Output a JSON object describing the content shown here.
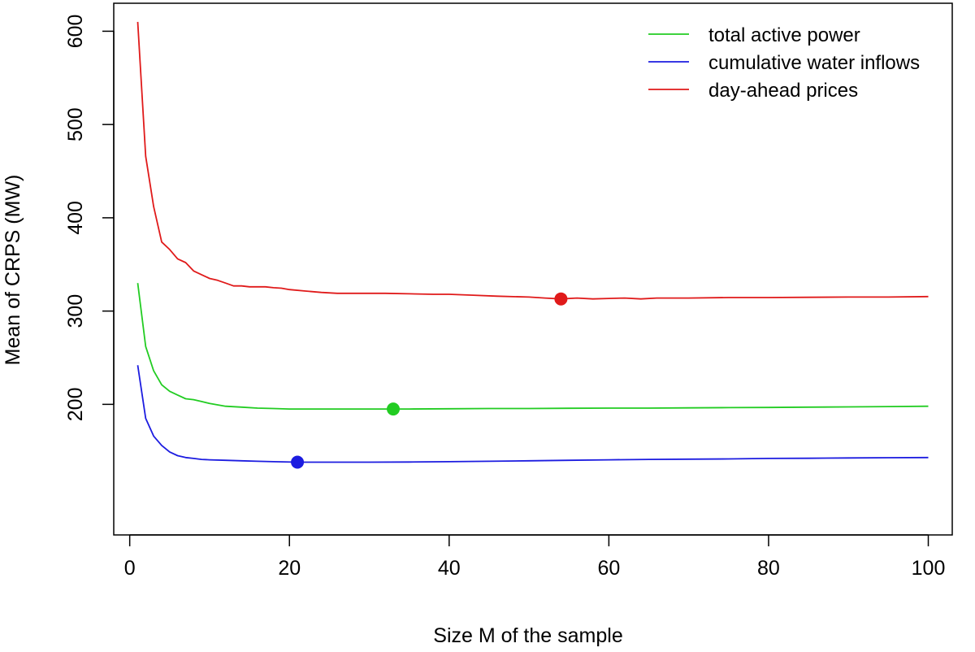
{
  "chart_data": {
    "type": "line",
    "xlabel": "Size M of the sample",
    "ylabel": "Mean of CRPS (MW)",
    "xlim": [
      -2,
      103
    ],
    "ylim": [
      60,
      630
    ],
    "xticks": [
      0,
      20,
      40,
      60,
      80,
      100
    ],
    "yticks": [
      200,
      300,
      400,
      500,
      600
    ],
    "grid": false,
    "legend_position": "top-right",
    "series": [
      {
        "name": "total active power",
        "color": "#22cc22",
        "x": [
          1,
          2,
          3,
          4,
          5,
          6,
          7,
          8,
          9,
          10,
          12,
          14,
          16,
          18,
          20,
          22,
          25,
          28,
          30,
          33,
          35,
          40,
          45,
          50,
          55,
          60,
          65,
          70,
          75,
          80,
          85,
          90,
          95,
          100
        ],
        "y": [
          330,
          262,
          236,
          221,
          214,
          210,
          206,
          205,
          203,
          201,
          198,
          197,
          196,
          195.5,
          195,
          195,
          195,
          195,
          195,
          195,
          195,
          195.3,
          195.5,
          195.5,
          195.8,
          196,
          196,
          196.2,
          196.5,
          196.7,
          197,
          197.3,
          197.6,
          198
        ],
        "marker": {
          "x": 33,
          "y": 195
        }
      },
      {
        "name": "cumulative water inflows",
        "color": "#1c1ce0",
        "x": [
          1,
          2,
          3,
          4,
          5,
          6,
          7,
          8,
          9,
          10,
          12,
          14,
          16,
          18,
          21,
          25,
          30,
          35,
          40,
          45,
          50,
          55,
          60,
          65,
          70,
          75,
          80,
          85,
          90,
          95,
          100
        ],
        "y": [
          242,
          185,
          166,
          156,
          149,
          145,
          143,
          142,
          141,
          140.5,
          140,
          139.5,
          139,
          138.5,
          138,
          138,
          138,
          138.2,
          138.5,
          139,
          139.5,
          140,
          140.5,
          141,
          141.2,
          141.5,
          142,
          142.2,
          142.5,
          142.8,
          143
        ],
        "marker": {
          "x": 21,
          "y": 138
        }
      },
      {
        "name": "day-ahead prices",
        "color": "#e01a1a",
        "x": [
          1,
          2,
          3,
          4,
          5,
          6,
          7,
          8,
          9,
          10,
          11,
          12,
          13,
          14,
          15,
          16,
          17,
          18,
          19,
          20,
          22,
          24,
          26,
          28,
          30,
          32,
          35,
          38,
          40,
          43,
          46,
          50,
          52,
          54,
          56,
          58,
          60,
          62,
          64,
          66,
          70,
          75,
          80,
          85,
          90,
          95,
          100
        ],
        "y": [
          610,
          466,
          412,
          374,
          366,
          356,
          352,
          343,
          339,
          335,
          333,
          330,
          327,
          327,
          326,
          326,
          326,
          325,
          324.5,
          323,
          321.5,
          320,
          319,
          319,
          319,
          319,
          318.5,
          318,
          318,
          317,
          316,
          315,
          314,
          313,
          314,
          313,
          313.5,
          314,
          313,
          314,
          314,
          314.5,
          314.5,
          314.8,
          315,
          315,
          315.5
        ],
        "marker": {
          "x": 54,
          "y": 313
        }
      }
    ]
  }
}
